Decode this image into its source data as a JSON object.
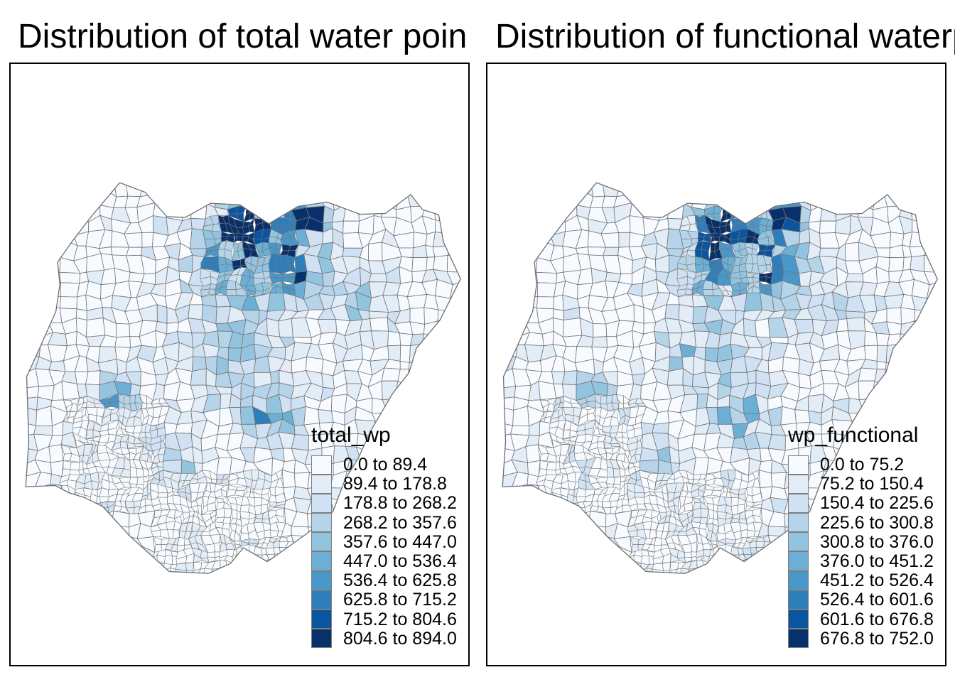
{
  "figure": {
    "background": "#ffffff",
    "panel_border_color": "#000000",
    "polygon_border_color": "#767676",
    "country_outline_color": "#6f6f6f"
  },
  "palette": [
    "#F7FBFF",
    "#E2EDF8",
    "#CFE1F2",
    "#B5D4E9",
    "#93C4DF",
    "#6BAED6",
    "#4A97C9",
    "#2E7EBC",
    "#0B559F",
    "#08306B"
  ],
  "panels": [
    {
      "title": "Distribution of total  water poin",
      "legend": {
        "title": "total_wp",
        "classes": [
          "0.0 to 89.4",
          "89.4 to 178.8",
          "178.8 to 268.2",
          "268.2 to 357.6",
          "357.6 to 447.0",
          "447.0 to 536.4",
          "536.4 to 625.8",
          "625.8 to 715.2",
          "715.2 to 804.6",
          "804.6 to 894.0"
        ]
      }
    },
    {
      "title": "Distribution of functional waterp",
      "legend": {
        "title": "wp_functional",
        "classes": [
          "0.0 to 75.2",
          "75.2 to 150.4",
          "150.4 to 225.6",
          "225.6 to 300.8",
          "300.8 to 376.0",
          "376.0 to 451.2",
          "451.2 to 526.4",
          "526.4 to 601.6",
          "601.6 to 676.8",
          "676.8 to 752.0"
        ]
      }
    }
  ],
  "chart_data": [
    {
      "type": "choropleth",
      "region": "Nigeria (LGA polygons)",
      "variable": "total_wp",
      "title": "Distribution of total  water poin",
      "class_breaks": [
        0.0,
        89.4,
        178.8,
        268.2,
        357.6,
        447.0,
        536.4,
        625.8,
        715.2,
        804.6,
        894.0
      ],
      "class_colors": [
        "#F7FBFF",
        "#E2EDF8",
        "#CFE1F2",
        "#B5D4E9",
        "#93C4DF",
        "#6BAED6",
        "#4A97C9",
        "#2E7EBC",
        "#0B559F",
        "#08306B"
      ],
      "legend_position": "bottom-right",
      "notes": "Highest classes (dark navy) in far-north LGAs; mid blues clustered in north-central band, a western cluster, scattered mid values in centre and south-east; majority of LGAs in lowest two classes."
    },
    {
      "type": "choropleth",
      "region": "Nigeria (LGA polygons)",
      "variable": "wp_functional",
      "title": "Distribution of functional waterp",
      "class_breaks": [
        0.0,
        75.2,
        150.4,
        225.6,
        300.8,
        376.0,
        451.2,
        526.4,
        601.6,
        676.8,
        752.0
      ],
      "class_colors": [
        "#F7FBFF",
        "#E2EDF8",
        "#CFE1F2",
        "#B5D4E9",
        "#93C4DF",
        "#6BAED6",
        "#4A97C9",
        "#2E7EBC",
        "#0B559F",
        "#08306B"
      ],
      "legend_position": "bottom-right",
      "notes": "Same spatial pattern as total_wp but slightly lighter overall; identical dark hotspots in the far north."
    }
  ]
}
